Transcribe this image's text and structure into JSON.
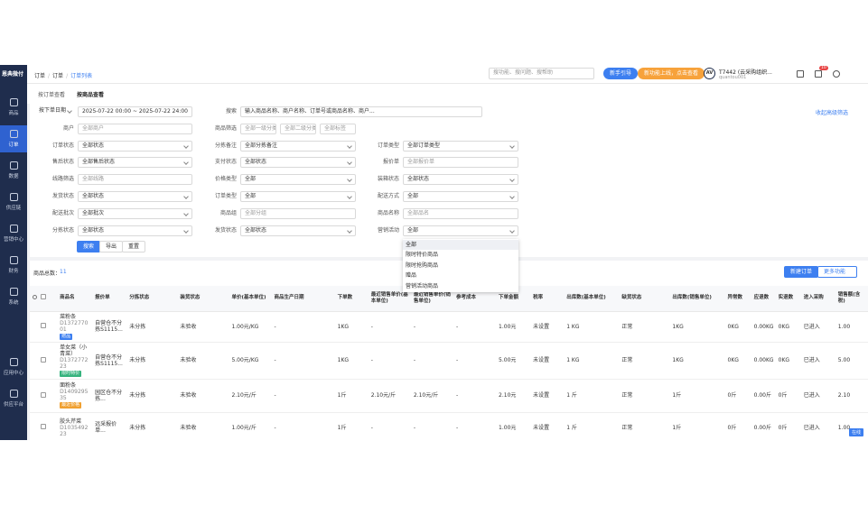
{
  "sidebar": {
    "logo": "恩典微付",
    "items": [
      {
        "label": "商品"
      },
      {
        "label": "订单",
        "active": true
      },
      {
        "label": "数据"
      },
      {
        "label": "供应链"
      },
      {
        "label": "营销中心"
      },
      {
        "label": "财务"
      },
      {
        "label": "系统"
      }
    ],
    "bottom_items": [
      {
        "label": "应用中心"
      },
      {
        "label": "供应平台"
      }
    ]
  },
  "topbar": {
    "breadcrumb": [
      "订单",
      "订单",
      "订单列表"
    ],
    "search_placeholder": "搜功能、搜问题、搜帮助",
    "guide_button": "新手引导",
    "news_button": "新功能上线，点击查看",
    "avatar": "AV",
    "user_name": "T7442 (云采购组织...",
    "user_account": "quantou001",
    "badge": "10"
  },
  "tabs": [
    {
      "label": "按订单查看"
    },
    {
      "label": "按商品查看",
      "active": true
    }
  ],
  "filters": {
    "collapse_link": "收起高级筛选",
    "rows": [
      [
        {
          "label": "按下单日期",
          "values": [
            "2025-07-22 00:00 ~ 2025-07-22 24:00"
          ]
        },
        {
          "label": "搜索",
          "values": [
            "输入商品名称、商户名称、订单号或商品名称、商户..."
          ]
        }
      ],
      [
        {
          "label": "商户",
          "values": [
            "全部商户"
          ]
        },
        {
          "label": "商品筛选",
          "values": [
            "全部一级分类",
            "全部二级分类",
            "全部标签"
          ]
        }
      ],
      [
        {
          "label": "订单状态",
          "values": [
            "全部状态"
          ]
        },
        {
          "label": "分拣备注",
          "values": [
            "全部分拣备注"
          ]
        },
        {
          "label": "订单类型",
          "values": [
            "全部订单类型"
          ]
        }
      ],
      [
        {
          "label": "售后状态",
          "values": [
            "全部售后状态"
          ]
        },
        {
          "label": "支付状态",
          "values": [
            "全部状态"
          ]
        },
        {
          "label": "报价单",
          "values": [
            "全部报价单"
          ]
        }
      ],
      [
        {
          "label": "线路筛选",
          "values": [
            "全部线路"
          ]
        },
        {
          "label": "价格类型",
          "values": [
            "全部"
          ]
        },
        {
          "label": "装箱状态",
          "values": [
            "全部状态"
          ]
        }
      ],
      [
        {
          "label": "发货状态",
          "values": [
            "全部状态"
          ]
        },
        {
          "label": "订单类型",
          "values": [
            "全部"
          ]
        },
        {
          "label": "配送方式",
          "values": [
            "全部"
          ]
        }
      ],
      [
        {
          "label": "配送批次",
          "values": [
            "全部批次"
          ]
        },
        {
          "label": "商品组",
          "values": [
            "全部分组"
          ]
        },
        {
          "label": "商品名称",
          "values": [
            "全部品名"
          ]
        }
      ],
      [
        {
          "label": "分拣状态",
          "values": [
            "全部状态"
          ]
        },
        {
          "label": "发货状态",
          "values": [
            "全部状态"
          ]
        },
        {
          "label": "营销活动",
          "values": [
            "全部"
          ]
        }
      ]
    ],
    "dropdown_options": [
      "全部",
      "限时特价商品",
      "限时抢购商品",
      "赠品",
      "营销活动商品"
    ],
    "buttons": [
      "搜索",
      "导出",
      "重置"
    ]
  },
  "table": {
    "total_label": "商品总数：",
    "total": "11",
    "new_button": "新建订单",
    "more_button": "更多功能",
    "columns": [
      "商品名",
      "报价单",
      "分拣状态",
      "装货状态",
      "单价(基本单位)",
      "商品生产日期",
      "下单数",
      "最近销售单价(基本单位)",
      "最近销售单价(销售单位)",
      "参考成本",
      "下单金额",
      "税率",
      "出库数(基本单位)",
      "缺货状态",
      "出库数(销售单位)",
      "异常数",
      "应退数",
      "实退数",
      "进入采购",
      "销售额(含税)"
    ],
    "rows": [
      {
        "name": "菜粉条",
        "code": "D137277001",
        "tags": [
          {
            "text": "赠品",
            "color": "#3d7ff0"
          }
        ],
        "cells": [
          "自营仓不分拣S1115...",
          "未分拣",
          "未验收",
          "1.00元/KG",
          "-",
          "1KG",
          "-",
          "-",
          "-",
          "1.00元",
          "未设置",
          "1 KG",
          "正常",
          "1KG",
          "0KG",
          "0.00KG",
          "0KG",
          "已进入",
          "1.00"
        ]
      },
      {
        "name": "单女菜（小青菜）",
        "code": "D137277223",
        "tags": [
          {
            "text": "限时特价",
            "color": "#36b37e"
          }
        ],
        "cells": [
          "自营仓不分拣S1115...",
          "未分拣",
          "未验收",
          "5.00元/KG",
          "-",
          "1KG",
          "-",
          "-",
          "-",
          "5.00元",
          "未设置",
          "1 KG",
          "正常",
          "1KG",
          "0KG",
          "0.00KG",
          "0KG",
          "已进入",
          "5.00"
        ]
      },
      {
        "name": "面粉条",
        "code": "D140929535",
        "tags": [
          {
            "text": "最近价格",
            "color": "#f0a030"
          }
        ],
        "cells": [
          "园区仓不分拣...",
          "未分拣",
          "未验收",
          "2.10元/斤",
          "-",
          "1斤",
          "2.10元/斤",
          "2.10元/斤",
          "-",
          "2.10元",
          "未设置",
          "1 斤",
          "正常",
          "1斤",
          "0斤",
          "0.00斤",
          "0斤",
          "已进入",
          "2.10"
        ]
      },
      {
        "name": "胶头芹菜",
        "code": "D103549223",
        "tags": [],
        "cells": [
          "远采报价单...",
          "未分拣",
          "未验收",
          "1.00元/斤",
          "-",
          "1斤",
          "-",
          "-",
          "-",
          "1.00元",
          "未设置",
          "1 斤",
          "正常",
          "1斤",
          "0斤",
          "0.00斤",
          "0斤",
          "已进入",
          "1.00"
        ]
      }
    ]
  },
  "service_tag": "在线"
}
